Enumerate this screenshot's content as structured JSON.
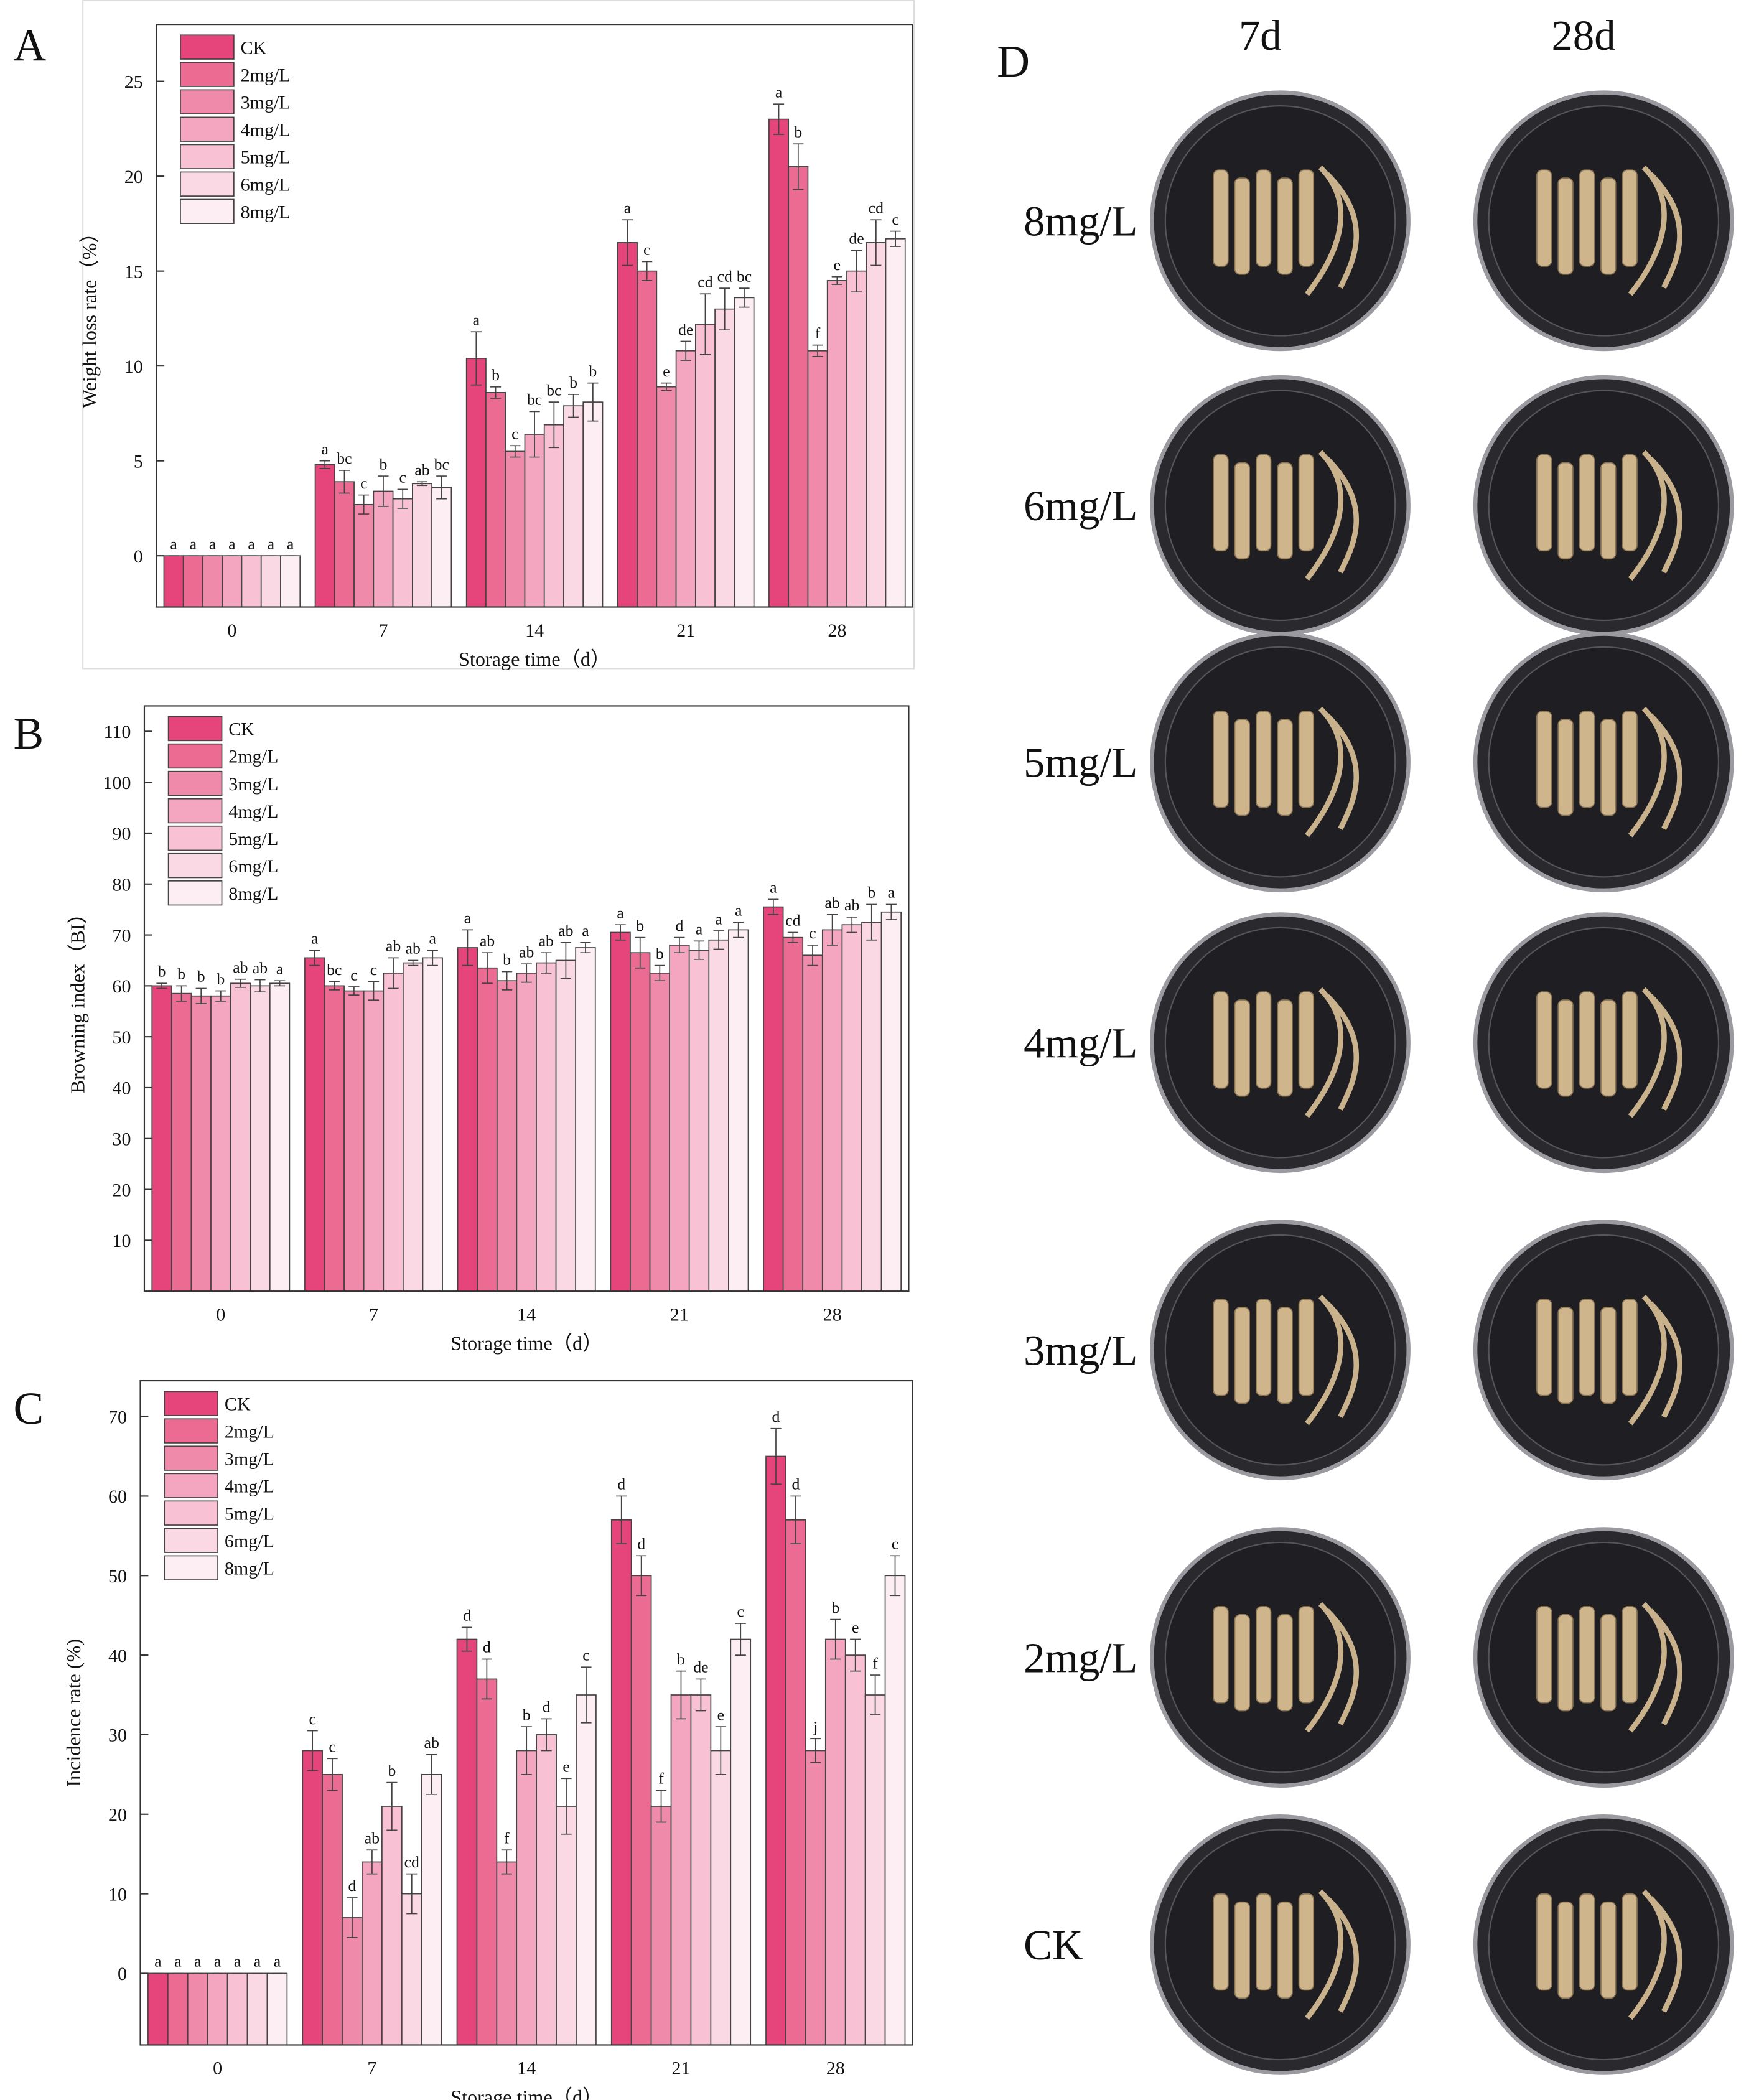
{
  "chart_data": [
    {
      "type": "bar",
      "panel_label": "A",
      "x_label": "Storage time（d）",
      "y_label": "Weight loss rate（%）",
      "categories": [
        "0",
        "7",
        "14",
        "21",
        "28"
      ],
      "ylim": [
        -2.7,
        28
      ],
      "yticks": [
        0,
        5,
        10,
        15,
        20,
        25
      ],
      "series": [
        {
          "name": "CK",
          "color": "#e5457a",
          "values": [
            0,
            4.8,
            10.4,
            16.5,
            23.0
          ],
          "errors": [
            0,
            0.2,
            1.4,
            1.2,
            0.8
          ],
          "significance": [
            "a",
            "a",
            "a",
            "a",
            "a"
          ]
        },
        {
          "name": "2mg/L",
          "color": "#ec6b93",
          "values": [
            0,
            3.9,
            8.6,
            15.0,
            20.5
          ],
          "errors": [
            0,
            0.6,
            0.3,
            0.5,
            1.2
          ],
          "significance": [
            "a",
            "bc",
            "b",
            "c",
            "b"
          ]
        },
        {
          "name": "3mg/L",
          "color": "#f08aab",
          "values": [
            0,
            2.7,
            5.5,
            8.9,
            10.8
          ],
          "errors": [
            0,
            0.5,
            0.3,
            0.2,
            0.3
          ],
          "significance": [
            "a",
            "c",
            "c",
            "e",
            "f"
          ]
        },
        {
          "name": "4mg/L",
          "color": "#f4a6c0",
          "values": [
            0,
            3.4,
            6.4,
            10.8,
            14.5
          ],
          "errors": [
            0,
            0.8,
            1.2,
            0.5,
            0.2
          ],
          "significance": [
            "a",
            "b",
            "bc",
            "de",
            "e"
          ]
        },
        {
          "name": "5mg/L",
          "color": "#f8c2d4",
          "values": [
            0,
            3.0,
            6.9,
            12.2,
            15.0
          ],
          "errors": [
            0,
            0.5,
            1.2,
            1.6,
            1.1
          ],
          "significance": [
            "a",
            "c",
            "bc",
            "cd",
            "de"
          ]
        },
        {
          "name": "6mg/L",
          "color": "#fbd9e4",
          "values": [
            0,
            3.8,
            7.9,
            13.0,
            16.5
          ],
          "errors": [
            0,
            0.1,
            0.6,
            1.1,
            1.2
          ],
          "significance": [
            "a",
            "ab",
            "b",
            "cd",
            "cd"
          ]
        },
        {
          "name": "8mg/L",
          "color": "#fdeef3",
          "values": [
            0,
            3.6,
            8.1,
            13.6,
            16.7
          ],
          "errors": [
            0,
            0.6,
            1.0,
            0.5,
            0.4
          ],
          "significance": [
            "a",
            "bc",
            "b",
            "bc",
            "c"
          ]
        }
      ]
    },
    {
      "type": "bar",
      "panel_label": "B",
      "x_label": "Storage time（d）",
      "y_label": "Browning index（BI）",
      "categories": [
        "0",
        "7",
        "14",
        "21",
        "28"
      ],
      "ylim": [
        0,
        115
      ],
      "yticks": [
        10,
        20,
        30,
        40,
        50,
        60,
        70,
        80,
        90,
        100,
        110
      ],
      "series": [
        {
          "name": "CK",
          "color": "#e5457a",
          "values": [
            60,
            65.5,
            67.5,
            70.5,
            75.5
          ],
          "errors": [
            0.5,
            1.5,
            3.5,
            1.5,
            1.5
          ],
          "significance": [
            "b",
            "a",
            "a",
            "a",
            "a"
          ]
        },
        {
          "name": "2mg/L",
          "color": "#ec6b93",
          "values": [
            58.5,
            60,
            63.5,
            66.5,
            69.5
          ],
          "errors": [
            1.5,
            0.8,
            3,
            3,
            1
          ],
          "significance": [
            "b",
            "bc",
            "ab",
            "b",
            "cd"
          ]
        },
        {
          "name": "3mg/L",
          "color": "#f08aab",
          "values": [
            58,
            59,
            61,
            62.5,
            66
          ],
          "errors": [
            1.5,
            0.8,
            1.8,
            1.5,
            2
          ],
          "significance": [
            "b",
            "c",
            "b",
            "b",
            "c"
          ]
        },
        {
          "name": "4mg/L",
          "color": "#f4a6c0",
          "values": [
            58,
            59,
            62.5,
            68,
            71
          ],
          "errors": [
            1,
            1.8,
            1.8,
            1.5,
            3
          ],
          "significance": [
            "b",
            "c",
            "ab",
            "d",
            "ab"
          ]
        },
        {
          "name": "5mg/L",
          "color": "#f8c2d4",
          "values": [
            60.5,
            62.5,
            64.5,
            67,
            72
          ],
          "errors": [
            0.8,
            3,
            2,
            1.8,
            1.5
          ],
          "significance": [
            "ab",
            "ab",
            "ab",
            "a",
            "ab"
          ]
        },
        {
          "name": "6mg/L",
          "color": "#fbd9e4",
          "values": [
            60,
            64.5,
            65,
            69,
            72.5
          ],
          "errors": [
            1.2,
            0.5,
            3.5,
            1.8,
            3.5
          ],
          "significance": [
            "ab",
            "ab",
            "ab",
            "a",
            "b"
          ]
        },
        {
          "name": "8mg/L",
          "color": "#fdeef3",
          "values": [
            60.5,
            65.5,
            67.5,
            71,
            74.5
          ],
          "errors": [
            0.5,
            1.5,
            1,
            1.5,
            1.5
          ],
          "significance": [
            "a",
            "a",
            "a",
            "a",
            "a"
          ]
        }
      ]
    },
    {
      "type": "bar",
      "panel_label": "C",
      "x_label": "Storage time（d）",
      "y_label": "Incidence rate (%)",
      "categories": [
        "0",
        "7",
        "14",
        "21",
        "28"
      ],
      "ylim": [
        -9,
        74.5
      ],
      "yticks": [
        0,
        10,
        20,
        30,
        40,
        50,
        60,
        70
      ],
      "series": [
        {
          "name": "CK",
          "color": "#e5457a",
          "values": [
            0,
            28,
            42,
            57,
            65
          ],
          "errors": [
            0,
            2.5,
            1.5,
            3,
            3.5
          ],
          "significance": [
            "a",
            "c",
            "d",
            "d",
            "d"
          ]
        },
        {
          "name": "2mg/L",
          "color": "#ec6b93",
          "values": [
            0,
            25,
            37,
            50,
            57
          ],
          "errors": [
            0,
            2,
            2.5,
            2.5,
            3
          ],
          "significance": [
            "a",
            "c",
            "d",
            "d",
            "d"
          ]
        },
        {
          "name": "3mg/L",
          "color": "#f08aab",
          "values": [
            0,
            7,
            14,
            21,
            28
          ],
          "errors": [
            0,
            2.5,
            1.5,
            2,
            1.5
          ],
          "significance": [
            "a",
            "d",
            "f",
            "f",
            "j"
          ]
        },
        {
          "name": "4mg/L",
          "color": "#f4a6c0",
          "values": [
            0,
            14,
            28,
            35,
            42
          ],
          "errors": [
            0,
            1.5,
            3,
            3,
            2.5
          ],
          "significance": [
            "a",
            "ab",
            "b",
            "b",
            "b"
          ]
        },
        {
          "name": "5mg/L",
          "color": "#f8c2d4",
          "values": [
            0,
            21,
            30,
            35,
            40
          ],
          "errors": [
            0,
            3,
            2,
            2,
            2
          ],
          "significance": [
            "a",
            "b",
            "d",
            "de",
            "e"
          ]
        },
        {
          "name": "6mg/L",
          "color": "#fbd9e4",
          "values": [
            0,
            10,
            21,
            28,
            35
          ],
          "errors": [
            0,
            2.5,
            3.5,
            3,
            2.5
          ],
          "significance": [
            "a",
            "cd",
            "e",
            "e",
            "f"
          ]
        },
        {
          "name": "8mg/L",
          "color": "#fdeef3",
          "values": [
            0,
            25,
            35,
            42,
            50
          ],
          "errors": [
            0,
            2.5,
            3.5,
            2,
            2.5
          ],
          "significance": [
            "a",
            "ab",
            "c",
            "c",
            "c"
          ]
        }
      ]
    }
  ],
  "photo_panel": {
    "panel_label": "D",
    "columns": [
      "7d",
      "28d"
    ],
    "rows": [
      "8mg/L",
      "6mg/L",
      "5mg/L",
      "4mg/L",
      "3mg/L",
      "2mg/L",
      "CK"
    ]
  }
}
